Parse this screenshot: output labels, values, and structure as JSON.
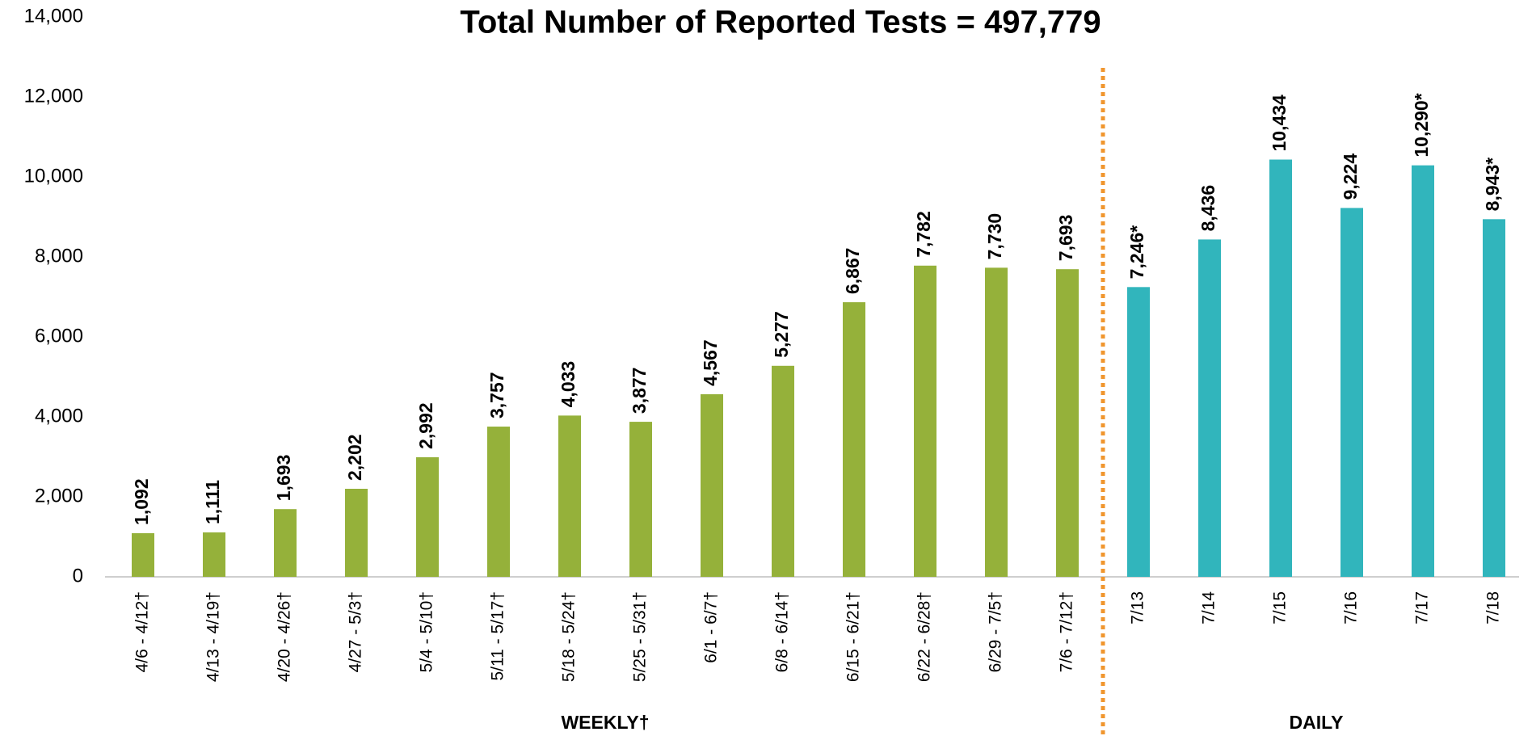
{
  "chart_data": {
    "type": "bar",
    "title": "Total Number of Reported Tests = 497,779",
    "categories": [
      "4/6 - 4/12†",
      "4/13 - 4/19†",
      "4/20 - 4/26†",
      "4/27 - 5/3†",
      "5/4 - 5/10†",
      "5/11 - 5/17†",
      "5/18 - 5/24†",
      "5/25 - 5/31†",
      "6/1 - 6/7†",
      "6/8 - 6/14†",
      "6/15 - 6/21†",
      "6/22 - 6/28†",
      "6/29 - 7/5†",
      "7/6 - 7/12†",
      "7/13",
      "7/14",
      "7/15",
      "7/16",
      "7/17",
      "7/18"
    ],
    "series": [
      {
        "name": "WEEKLY†",
        "color": "#95b13a",
        "values": [
          1092,
          1111,
          1693,
          2202,
          2992,
          3757,
          4033,
          3877,
          4567,
          5277,
          6867,
          7782,
          7730,
          7693,
          null,
          null,
          null,
          null,
          null,
          null
        ],
        "value_labels": [
          "1,092",
          "1,111",
          "1,693",
          "2,202",
          "2,992",
          "3,757",
          "4,033",
          "3,877",
          "4,567",
          "5,277",
          "6,867",
          "7,782",
          "7,730",
          "7,693",
          null,
          null,
          null,
          null,
          null,
          null
        ]
      },
      {
        "name": "DAILY",
        "color": "#31b5bc",
        "values": [
          null,
          null,
          null,
          null,
          null,
          null,
          null,
          null,
          null,
          null,
          null,
          null,
          null,
          null,
          7246,
          8436,
          10434,
          9224,
          10290,
          8943
        ],
        "value_labels": [
          null,
          null,
          null,
          null,
          null,
          null,
          null,
          null,
          null,
          null,
          null,
          null,
          null,
          null,
          "7,246*",
          "8,436",
          "10,434",
          "9,224",
          "10,290*",
          "8,943*"
        ]
      }
    ],
    "ylim": [
      0,
      14000
    ],
    "yticks": [
      0,
      {
        "value": 2000,
        "label": "2,000"
      },
      {
        "value": 4000,
        "label": "4,000"
      },
      {
        "value": 6000,
        "label": "6,000"
      },
      {
        "value": 8000,
        "label": "8,000"
      },
      {
        "value": 10000,
        "label": "10,000"
      },
      {
        "value": 12000,
        "label": "12,000"
      },
      {
        "value": 14000,
        "label": "14,000"
      }
    ],
    "grid": false,
    "divider_color": "#f0962e"
  }
}
